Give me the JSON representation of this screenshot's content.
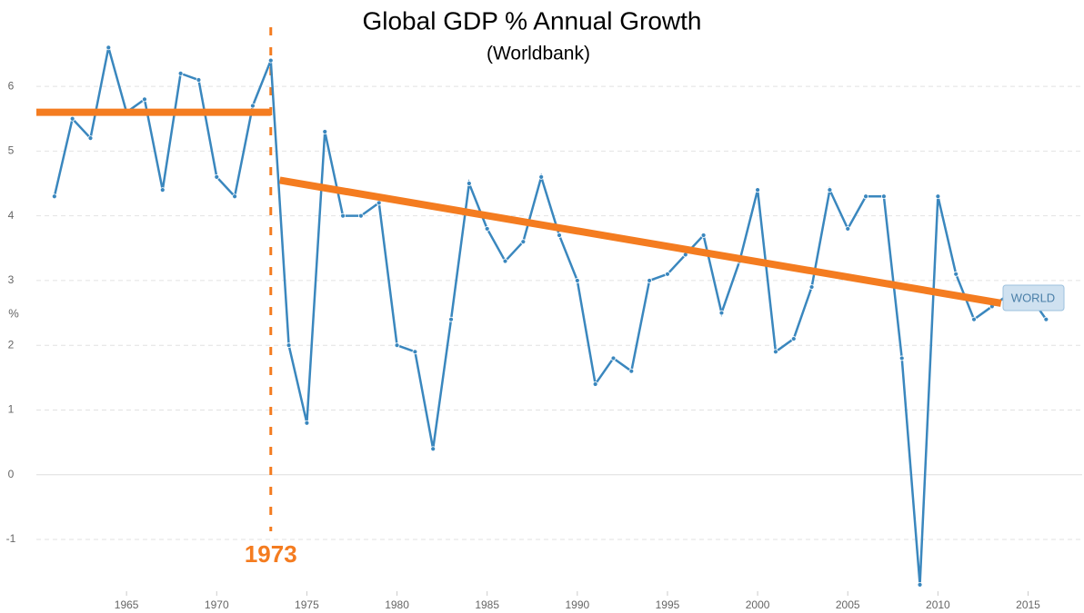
{
  "chart_data": {
    "type": "line",
    "title": "Global GDP % Annual Growth",
    "subtitle": "(Worldbank)",
    "y_label": "%",
    "x": [
      1961,
      1962,
      1963,
      1964,
      1965,
      1966,
      1967,
      1968,
      1969,
      1970,
      1971,
      1972,
      1973,
      1974,
      1975,
      1976,
      1977,
      1978,
      1979,
      1980,
      1981,
      1982,
      1983,
      1984,
      1985,
      1986,
      1987,
      1988,
      1989,
      1990,
      1991,
      1992,
      1993,
      1994,
      1995,
      1996,
      1997,
      1998,
      1999,
      2000,
      2001,
      2002,
      2003,
      2004,
      2005,
      2006,
      2007,
      2008,
      2009,
      2010,
      2011,
      2012,
      2013,
      2014,
      2015,
      2016
    ],
    "series": [
      {
        "name": "WORLD",
        "color": "#3a87be",
        "values": [
          4.3,
          5.5,
          5.2,
          6.6,
          5.6,
          5.8,
          4.4,
          6.2,
          6.1,
          4.6,
          4.3,
          5.7,
          6.4,
          2.0,
          0.8,
          5.3,
          4.0,
          4.0,
          4.2,
          2.0,
          1.9,
          0.4,
          2.4,
          4.5,
          3.8,
          3.3,
          3.6,
          4.6,
          3.7,
          3.0,
          1.4,
          1.8,
          1.6,
          3.0,
          3.1,
          3.4,
          3.7,
          2.5,
          3.3,
          4.4,
          1.9,
          2.1,
          2.9,
          4.4,
          3.8,
          4.3,
          4.3,
          1.8,
          -1.7,
          4.3,
          3.1,
          2.4,
          2.6,
          2.8,
          2.8,
          2.4
        ]
      }
    ],
    "trend_lines": [
      {
        "color": "#f47c20",
        "x": [
          1960,
          1973
        ],
        "values": [
          5.6,
          5.6
        ]
      },
      {
        "color": "#f47c20",
        "x": [
          1973.5,
          2013.5
        ],
        "values": [
          4.55,
          2.65
        ]
      }
    ],
    "marker_line": {
      "x": 1973,
      "color": "#f47c20"
    },
    "xlim": [
      1960,
      2018
    ],
    "ylim": [
      -1.8,
      6.9
    ],
    "xticks": [
      1965,
      1970,
      1975,
      1980,
      1985,
      1990,
      1995,
      2000,
      2005,
      2010,
      2015
    ],
    "yticks": [
      -1,
      0,
      1,
      2,
      3,
      4,
      5,
      6
    ],
    "grid": true
  }
}
